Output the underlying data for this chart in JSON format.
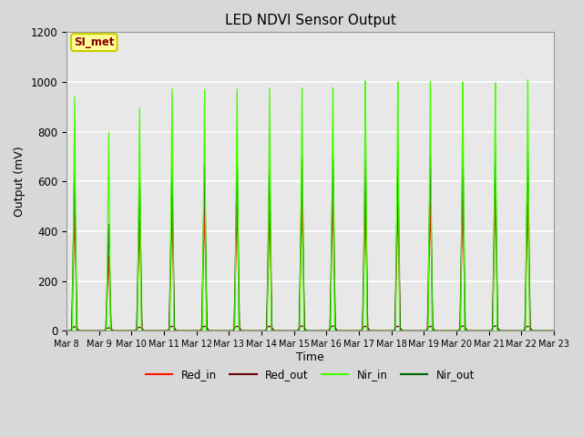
{
  "title": "LED NDVI Sensor Output",
  "xlabel": "Time",
  "ylabel": "Output (mV)",
  "ylim": [
    0,
    1200
  ],
  "figure_bg": "#d8d8d8",
  "plot_bg": "#e8e8e8",
  "grid_color": "white",
  "annotation_text": "SI_met",
  "annotation_bg": "#ffff99",
  "annotation_border": "#cccc00",
  "annotation_text_color": "#880000",
  "line_colors": {
    "Red_in": "#ff1100",
    "Red_out": "#660000",
    "Nir_in": "#44ff00",
    "Nir_out": "#006600"
  },
  "start_day": 8,
  "end_day": 23,
  "peak_days_offset": [
    0.25,
    1.3,
    2.25,
    3.25,
    4.25,
    5.25,
    6.25,
    7.25,
    8.2,
    9.2,
    10.2,
    11.2,
    12.2,
    13.2,
    14.2
  ],
  "red_in_vals": [
    480,
    300,
    450,
    490,
    500,
    520,
    490,
    530,
    530,
    520,
    510,
    520,
    530,
    540,
    510
  ],
  "red_out_vals": [
    25,
    18,
    22,
    28,
    28,
    28,
    28,
    30,
    30,
    28,
    28,
    28,
    30,
    30,
    28
  ],
  "nir_in_vals": [
    940,
    800,
    900,
    980,
    980,
    985,
    990,
    990,
    990,
    1015,
    1010,
    1010,
    1005,
    1000,
    1010
  ],
  "nir_out_vals": [
    650,
    430,
    620,
    665,
    680,
    705,
    690,
    700,
    705,
    700,
    700,
    700,
    730,
    725,
    720
  ]
}
